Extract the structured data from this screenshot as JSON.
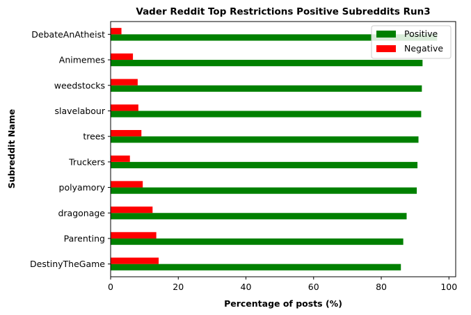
{
  "chart_data": {
    "type": "bar",
    "orientation": "horizontal",
    "title": "Vader Reddit Top Restrictions Positive Subreddits Run3",
    "xlabel": "Percentage of posts (%)",
    "ylabel": "Subreddit Name",
    "xlim": [
      0,
      102
    ],
    "xticks": [
      0,
      20,
      40,
      60,
      80,
      100
    ],
    "categories": [
      "DestinyTheGame",
      "Parenting",
      "dragonage",
      "polyamory",
      "Truckers",
      "trees",
      "slavelabour",
      "weedstocks",
      "Animemes",
      "DebateAnAtheist"
    ],
    "series": [
      {
        "name": "Positive",
        "color": "#008000",
        "values": [
          85.8,
          86.5,
          87.5,
          90.5,
          90.7,
          91.0,
          91.8,
          92.0,
          92.2,
          96.5
        ]
      },
      {
        "name": "Negative",
        "color": "#ff0000",
        "values": [
          14.2,
          13.5,
          12.4,
          9.5,
          5.7,
          9.1,
          8.2,
          8.0,
          6.6,
          3.2
        ]
      }
    ],
    "legend_position": "top-right",
    "grid": false
  }
}
